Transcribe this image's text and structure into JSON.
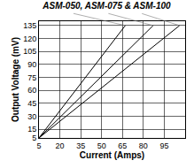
{
  "chart_data": {
    "type": "line",
    "title": "ASM-050, ASM-075 & ASM-100",
    "x_label": "Current (Amps)",
    "y_label": "Output Voltage (mV)",
    "series": [
      {
        "color": "#000000",
        "x": [
          5,
          67
        ],
        "values": [
          5,
          135
        ]
      },
      {
        "color": "#000000",
        "x": [
          5,
          87
        ],
        "values": [
          5,
          135
        ]
      },
      {
        "color": "#000000",
        "x": [
          5,
          106
        ],
        "values": [
          5,
          135
        ]
      }
    ],
    "xlim": [
      5,
      110
    ],
    "xticks": [
      5,
      20,
      35,
      50,
      65,
      80,
      95
    ],
    "ylim": [
      5,
      140
    ],
    "yticks": [
      5,
      15,
      30,
      45,
      60,
      75,
      90,
      105,
      120,
      135
    ],
    "grid": true
  }
}
